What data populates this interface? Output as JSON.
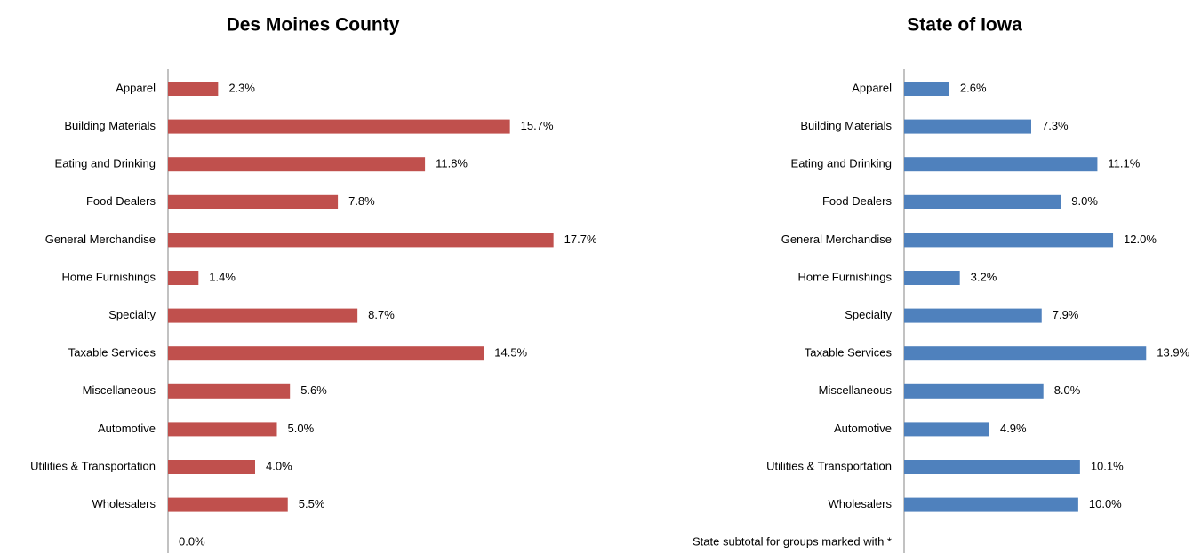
{
  "chart_data": [
    {
      "type": "bar",
      "orientation": "horizontal",
      "title": "Des Moines County",
      "categories": [
        "Apparel",
        "Building Materials",
        "Eating and Drinking",
        "Food Dealers",
        "General Merchandise",
        "Home Furnishings",
        "Specialty",
        "Taxable Services",
        "Miscellaneous",
        "Automotive",
        "Utilities & Transportation",
        "Wholesalers",
        null
      ],
      "values": [
        2.3,
        15.7,
        11.8,
        7.8,
        17.7,
        1.4,
        8.7,
        14.5,
        5.6,
        5.0,
        4.0,
        5.5,
        0
      ],
      "value_labels": [
        "2.3%",
        "15.7%",
        "11.8%",
        "7.8%",
        "17.7%",
        "1.4%",
        "8.7%",
        "14.5%",
        "5.6%",
        "5.0%",
        "4.0%",
        "5.5%",
        "0.0%"
      ],
      "color": "#c0504d",
      "xlim": [
        0,
        20
      ]
    },
    {
      "type": "bar",
      "orientation": "horizontal",
      "title": "State of Iowa",
      "categories": [
        "Apparel",
        "Building Materials",
        "Eating and Drinking",
        "Food Dealers",
        "General Merchandise",
        "Home Furnishings",
        "Specialty",
        "Taxable Services",
        "Miscellaneous",
        "Automotive",
        "Utilities & Transportation",
        "Wholesalers",
        "State subtotal for groups marked with *"
      ],
      "values": [
        2.6,
        7.3,
        11.1,
        9.0,
        12.0,
        3.2,
        7.9,
        13.9,
        8.0,
        4.9,
        10.1,
        10.0,
        null
      ],
      "value_labels": [
        "2.6%",
        "7.3%",
        "11.1%",
        "9.0%",
        "12.0%",
        "3.2%",
        "7.9%",
        "13.9%",
        "8.0%",
        "4.9%",
        "10.1%",
        "10.0%",
        null
      ],
      "color": "#4f81bd",
      "xlim": [
        0,
        17
      ]
    }
  ]
}
